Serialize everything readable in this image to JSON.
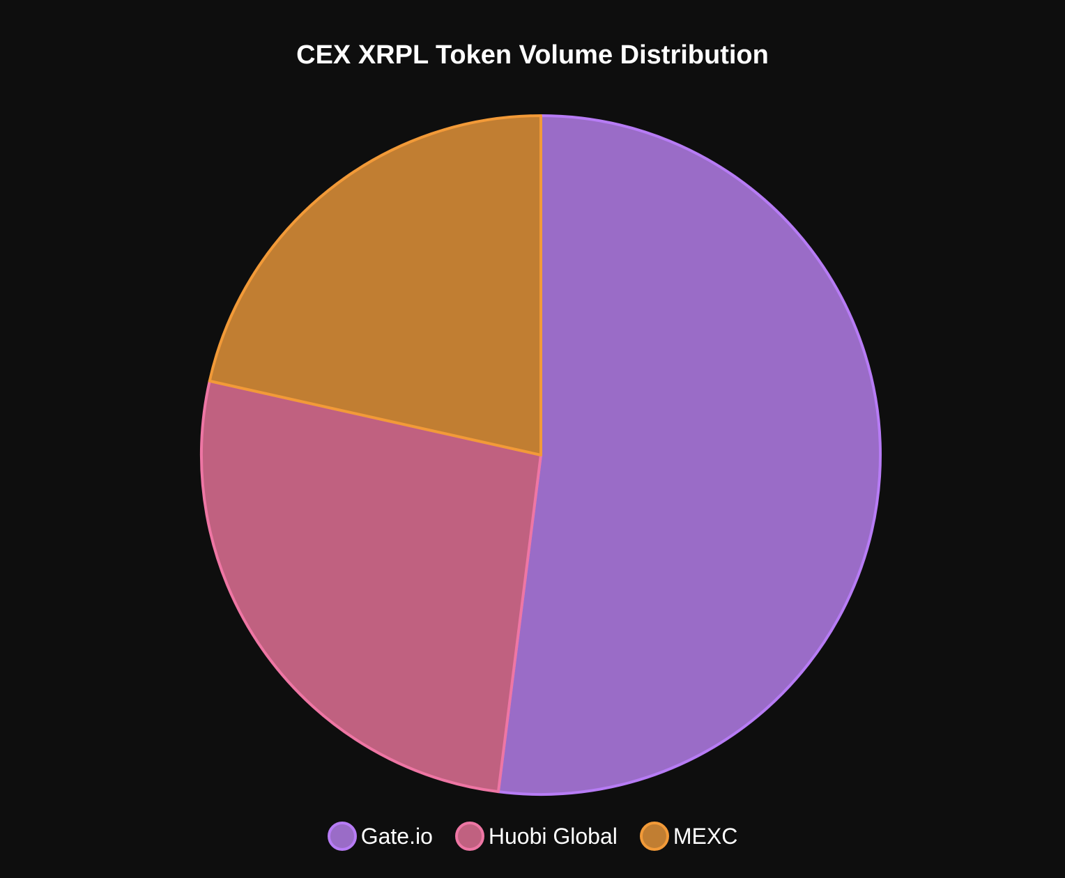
{
  "chart_data": {
    "type": "pie",
    "title": "CEX XRPL Token Volume Distribution",
    "slices": [
      {
        "label": "Gate.io",
        "value": 52.0,
        "fill": "#9a6cc7",
        "stroke": "#b77cf5"
      },
      {
        "label": "Huobi Global",
        "value": 26.5,
        "fill": "#c06180",
        "stroke": "#ee76a4"
      },
      {
        "label": "MEXC",
        "value": 21.5,
        "fill": "#c17e32",
        "stroke": "#f29a38"
      }
    ],
    "start_angle": "top",
    "direction": "clockwise",
    "legend_position": "bottom"
  }
}
